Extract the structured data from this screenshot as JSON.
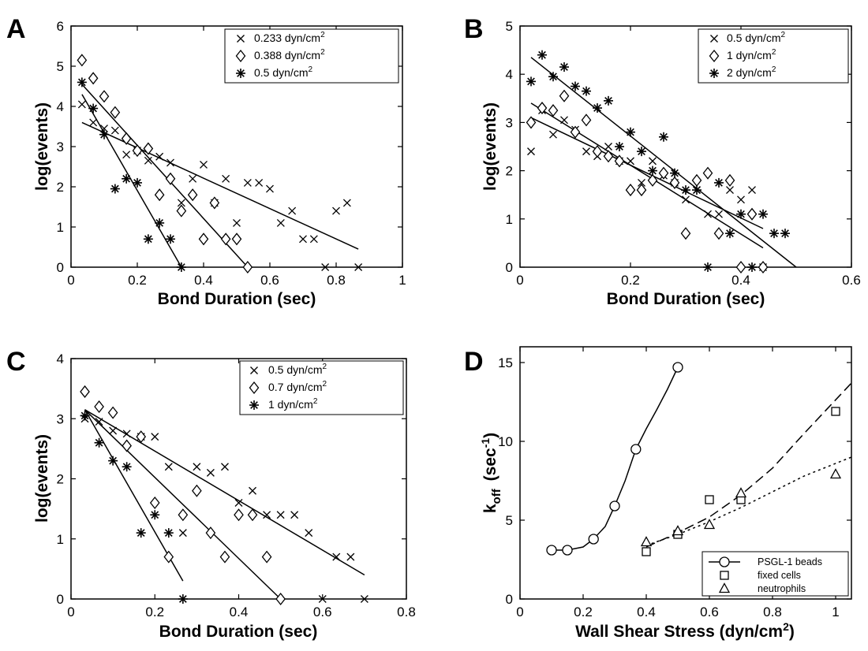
{
  "colors": {
    "ink": "#000000",
    "background": "#ffffff"
  },
  "chart_data": [
    {
      "panel": "A",
      "type": "scatter",
      "xlabel": "Bond Duration  (sec)",
      "ylabel": "log(events)",
      "xlim": [
        0,
        1
      ],
      "ylim": [
        0,
        6
      ],
      "xticks": [
        "0",
        "0.2",
        "0.4",
        "0.6",
        "0.8",
        "1"
      ],
      "yticks": [
        "0",
        "1",
        "2",
        "3",
        "4",
        "5",
        "6"
      ],
      "legend_position": "top-right",
      "series": [
        {
          "name": "0.233 dyn/cm²",
          "legend_text": "0.233 dyn/cm",
          "legend_sup": "2",
          "marker": "x",
          "points": [
            [
              0.033,
              4.05
            ],
            [
              0.067,
              3.6
            ],
            [
              0.1,
              3.45
            ],
            [
              0.133,
              3.4
            ],
            [
              0.167,
              2.8
            ],
            [
              0.2,
              2.9
            ],
            [
              0.233,
              2.65
            ],
            [
              0.267,
              2.75
            ],
            [
              0.3,
              2.6
            ],
            [
              0.333,
              1.6
            ],
            [
              0.367,
              2.2
            ],
            [
              0.4,
              2.55
            ],
            [
              0.433,
              1.6
            ],
            [
              0.467,
              2.2
            ],
            [
              0.5,
              1.1
            ],
            [
              0.533,
              2.1
            ],
            [
              0.567,
              2.1
            ],
            [
              0.6,
              1.95
            ],
            [
              0.633,
              1.1
            ],
            [
              0.667,
              1.4
            ],
            [
              0.7,
              0.7
            ],
            [
              0.733,
              0.7
            ],
            [
              0.767,
              0
            ],
            [
              0.8,
              1.4
            ],
            [
              0.833,
              1.6
            ],
            [
              0.867,
              0
            ]
          ],
          "fit_line": [
            [
              0.033,
              3.6
            ],
            [
              0.867,
              0.45
            ]
          ]
        },
        {
          "name": "0.388 dyn/cm²",
          "legend_text": "0.388 dyn/cm",
          "legend_sup": "2",
          "marker": "diamond",
          "points": [
            [
              0.033,
              5.15
            ],
            [
              0.067,
              4.7
            ],
            [
              0.1,
              4.25
            ],
            [
              0.133,
              3.85
            ],
            [
              0.167,
              3.2
            ],
            [
              0.2,
              2.9
            ],
            [
              0.233,
              2.95
            ],
            [
              0.267,
              1.8
            ],
            [
              0.3,
              2.2
            ],
            [
              0.333,
              1.4
            ],
            [
              0.367,
              1.8
            ],
            [
              0.4,
              0.7
            ],
            [
              0.433,
              1.6
            ],
            [
              0.467,
              0.7
            ],
            [
              0.5,
              0.7
            ],
            [
              0.533,
              0
            ]
          ],
          "fit_line": [
            [
              0.033,
              4.55
            ],
            [
              0.533,
              0
            ]
          ]
        },
        {
          "name": "0.5 dyn/cm²",
          "legend_text": "0.5 dyn/cm",
          "legend_sup": "2",
          "marker": "asterisk",
          "points": [
            [
              0.033,
              4.6
            ],
            [
              0.067,
              3.95
            ],
            [
              0.1,
              3.3
            ],
            [
              0.133,
              1.95
            ],
            [
              0.167,
              2.2
            ],
            [
              0.2,
              2.1
            ],
            [
              0.233,
              0.7
            ],
            [
              0.267,
              1.1
            ],
            [
              0.3,
              0.7
            ],
            [
              0.333,
              0
            ]
          ],
          "fit_line": [
            [
              0.033,
              4.3
            ],
            [
              0.333,
              0
            ]
          ]
        }
      ]
    },
    {
      "panel": "B",
      "type": "scatter",
      "xlabel": "Bond Duration  (sec)",
      "ylabel": "log(events)",
      "xlim": [
        0,
        0.6
      ],
      "ylim": [
        0,
        5
      ],
      "xticks": [
        "0",
        "0.2",
        "0.4",
        "0.6"
      ],
      "yticks": [
        "0",
        "1",
        "2",
        "3",
        "4",
        "5"
      ],
      "legend_position": "top-right",
      "series": [
        {
          "name": "0.5 dyn/cm²",
          "legend_text": "0.5 dyn/cm",
          "legend_sup": "2",
          "marker": "x",
          "points": [
            [
              0.02,
              2.4
            ],
            [
              0.04,
              3.25
            ],
            [
              0.06,
              2.75
            ],
            [
              0.08,
              3.05
            ],
            [
              0.1,
              2.85
            ],
            [
              0.12,
              2.4
            ],
            [
              0.14,
              2.3
            ],
            [
              0.16,
              2.5
            ],
            [
              0.18,
              2.2
            ],
            [
              0.2,
              2.2
            ],
            [
              0.22,
              1.75
            ],
            [
              0.24,
              2.2
            ],
            [
              0.26,
              1.9
            ],
            [
              0.28,
              1.75
            ],
            [
              0.3,
              1.4
            ],
            [
              0.32,
              1.6
            ],
            [
              0.34,
              1.1
            ],
            [
              0.36,
              1.1
            ],
            [
              0.38,
              1.6
            ],
            [
              0.4,
              1.4
            ],
            [
              0.42,
              1.6
            ],
            [
              0.44,
              0
            ]
          ],
          "fit_line": [
            [
              0.02,
              3.1
            ],
            [
              0.44,
              0.8
            ]
          ]
        },
        {
          "name": "1 dyn/cm²",
          "legend_text": "1 dyn/cm",
          "legend_sup": "2",
          "marker": "diamond",
          "points": [
            [
              0.02,
              3.0
            ],
            [
              0.04,
              3.3
            ],
            [
              0.06,
              3.25
            ],
            [
              0.08,
              3.55
            ],
            [
              0.1,
              2.8
            ],
            [
              0.12,
              3.05
            ],
            [
              0.14,
              2.4
            ],
            [
              0.16,
              2.3
            ],
            [
              0.18,
              2.2
            ],
            [
              0.2,
              1.6
            ],
            [
              0.22,
              1.6
            ],
            [
              0.24,
              1.8
            ],
            [
              0.26,
              1.95
            ],
            [
              0.28,
              1.75
            ],
            [
              0.3,
              0.7
            ],
            [
              0.32,
              1.8
            ],
            [
              0.34,
              1.95
            ],
            [
              0.36,
              0.7
            ],
            [
              0.38,
              1.8
            ],
            [
              0.4,
              0
            ],
            [
              0.42,
              1.1
            ],
            [
              0.44,
              0
            ]
          ],
          "fit_line": [
            [
              0.02,
              3.4
            ],
            [
              0.44,
              0.4
            ]
          ]
        },
        {
          "name": "2 dyn/cm²",
          "legend_text": "2 dyn/cm",
          "legend_sup": "2",
          "marker": "asterisk",
          "points": [
            [
              0.02,
              3.85
            ],
            [
              0.04,
              4.4
            ],
            [
              0.06,
              3.95
            ],
            [
              0.08,
              4.15
            ],
            [
              0.1,
              3.75
            ],
            [
              0.12,
              3.65
            ],
            [
              0.14,
              3.3
            ],
            [
              0.16,
              3.45
            ],
            [
              0.18,
              2.5
            ],
            [
              0.2,
              2.8
            ],
            [
              0.22,
              2.4
            ],
            [
              0.24,
              2.0
            ],
            [
              0.26,
              2.7
            ],
            [
              0.28,
              1.95
            ],
            [
              0.3,
              1.6
            ],
            [
              0.32,
              1.6
            ],
            [
              0.34,
              0
            ],
            [
              0.36,
              1.75
            ],
            [
              0.38,
              0.7
            ],
            [
              0.4,
              1.1
            ],
            [
              0.42,
              0
            ],
            [
              0.44,
              1.1
            ],
            [
              0.46,
              0.7
            ],
            [
              0.48,
              0.7
            ]
          ],
          "fit_line": [
            [
              0.02,
              4.35
            ],
            [
              0.5,
              0
            ]
          ]
        }
      ]
    },
    {
      "panel": "C",
      "type": "scatter",
      "xlabel": "Bond Duration  (sec)",
      "ylabel": "log(events)",
      "xlim": [
        0,
        0.8
      ],
      "ylim": [
        0,
        4
      ],
      "xticks": [
        "0",
        "0.2",
        "0.4",
        "0.6",
        "0.8"
      ],
      "yticks": [
        "0",
        "1",
        "2",
        "3",
        "4"
      ],
      "legend_position": "top-right",
      "series": [
        {
          "name": "0.5 dyn/cm²",
          "legend_text": "0.5 dyn/cm",
          "legend_sup": "2",
          "marker": "x",
          "points": [
            [
              0.033,
              3.0
            ],
            [
              0.067,
              2.95
            ],
            [
              0.1,
              2.8
            ],
            [
              0.133,
              2.75
            ],
            [
              0.167,
              2.7
            ],
            [
              0.2,
              2.7
            ],
            [
              0.233,
              2.2
            ],
            [
              0.267,
              1.1
            ],
            [
              0.3,
              2.2
            ],
            [
              0.333,
              2.1
            ],
            [
              0.367,
              2.2
            ],
            [
              0.4,
              1.6
            ],
            [
              0.433,
              1.8
            ],
            [
              0.467,
              1.4
            ],
            [
              0.5,
              1.4
            ],
            [
              0.533,
              1.4
            ],
            [
              0.567,
              1.1
            ],
            [
              0.6,
              0
            ],
            [
              0.633,
              0.7
            ],
            [
              0.667,
              0.7
            ],
            [
              0.7,
              0
            ]
          ],
          "fit_line": [
            [
              0.033,
              3.15
            ],
            [
              0.7,
              0.4
            ]
          ]
        },
        {
          "name": "0.7 dyn/cm²",
          "legend_text": "0.7 dyn/cm",
          "legend_sup": "2",
          "marker": "diamond",
          "points": [
            [
              0.033,
              3.45
            ],
            [
              0.067,
              3.2
            ],
            [
              0.1,
              3.1
            ],
            [
              0.133,
              2.55
            ],
            [
              0.167,
              2.7
            ],
            [
              0.2,
              1.6
            ],
            [
              0.233,
              0.7
            ],
            [
              0.267,
              1.4
            ],
            [
              0.3,
              1.8
            ],
            [
              0.333,
              1.1
            ],
            [
              0.367,
              0.7
            ],
            [
              0.4,
              1.4
            ],
            [
              0.433,
              1.4
            ],
            [
              0.467,
              0.7
            ],
            [
              0.5,
              0
            ]
          ],
          "fit_line": [
            [
              0.033,
              3.15
            ],
            [
              0.5,
              0
            ]
          ]
        },
        {
          "name": "1 dyn/cm²",
          "legend_text": "1 dyn/cm",
          "legend_sup": "2",
          "marker": "asterisk",
          "points": [
            [
              0.033,
              3.05
            ],
            [
              0.067,
              2.6
            ],
            [
              0.1,
              2.3
            ],
            [
              0.133,
              2.2
            ],
            [
              0.167,
              1.1
            ],
            [
              0.2,
              1.4
            ],
            [
              0.233,
              1.1
            ],
            [
              0.267,
              0
            ]
          ],
          "fit_line": [
            [
              0.033,
              3.15
            ],
            [
              0.267,
              0.3
            ]
          ]
        }
      ]
    },
    {
      "panel": "D",
      "type": "scatter",
      "xlabel": "Wall Shear Stress (dyn/cm²)",
      "xlabel_text": "Wall Shear Stress (dyn/cm",
      "xlabel_sup": "2",
      "xlabel_tail": ")",
      "ylabel_main": "k",
      "ylabel_sub": "off",
      "ylabel_unit": "(sec",
      "ylabel_sup": "-1",
      "ylabel_tail": ")",
      "xlim": [
        0,
        1.05
      ],
      "ylim": [
        0,
        16
      ],
      "xticks": [
        "0",
        "0.2",
        "0.4",
        "0.6",
        "0.8",
        "1"
      ],
      "yticks": [
        "0",
        "5",
        "10",
        "15"
      ],
      "legend_position": "bottom-right",
      "series": [
        {
          "name": "PSGL-1 beads",
          "marker": "circle",
          "line": "solid",
          "points": [
            [
              0.1,
              3.1
            ],
            [
              0.15,
              3.1
            ],
            [
              0.233,
              3.8
            ],
            [
              0.3,
              5.9
            ],
            [
              0.367,
              9.5
            ],
            [
              0.5,
              14.7
            ]
          ],
          "fit_line": [
            [
              0.1,
              3.1
            ],
            [
              0.15,
              3.1
            ],
            [
              0.2,
              3.3
            ],
            [
              0.233,
              3.8
            ],
            [
              0.27,
              4.6
            ],
            [
              0.3,
              5.9
            ],
            [
              0.333,
              7.5
            ],
            [
              0.367,
              9.5
            ],
            [
              0.4,
              10.8
            ],
            [
              0.433,
              12.0
            ],
            [
              0.467,
              13.3
            ],
            [
              0.5,
              14.7
            ]
          ]
        },
        {
          "name": "fixed cells",
          "marker": "square",
          "line": "dashed",
          "points": [
            [
              0.4,
              3.0
            ],
            [
              0.5,
              4.1
            ],
            [
              0.6,
              6.3
            ],
            [
              0.7,
              6.3
            ],
            [
              1.0,
              11.9
            ]
          ],
          "fit_line": [
            [
              0.4,
              3.3
            ],
            [
              0.5,
              4.2
            ],
            [
              0.6,
              5.2
            ],
            [
              0.7,
              6.6
            ],
            [
              0.8,
              8.3
            ],
            [
              0.9,
              10.5
            ],
            [
              1.05,
              13.7
            ]
          ]
        },
        {
          "name": "neutrophils",
          "marker": "triangle",
          "line": "dotted",
          "points": [
            [
              0.4,
              3.6
            ],
            [
              0.5,
              4.3
            ],
            [
              0.6,
              4.7
            ],
            [
              0.7,
              6.7
            ],
            [
              1.0,
              7.9
            ]
          ],
          "fit_line": [
            [
              0.4,
              3.4
            ],
            [
              0.5,
              4.1
            ],
            [
              0.6,
              4.9
            ],
            [
              0.7,
              5.8
            ],
            [
              0.8,
              6.8
            ],
            [
              0.9,
              7.8
            ],
            [
              1.05,
              9.0
            ]
          ]
        }
      ]
    }
  ]
}
